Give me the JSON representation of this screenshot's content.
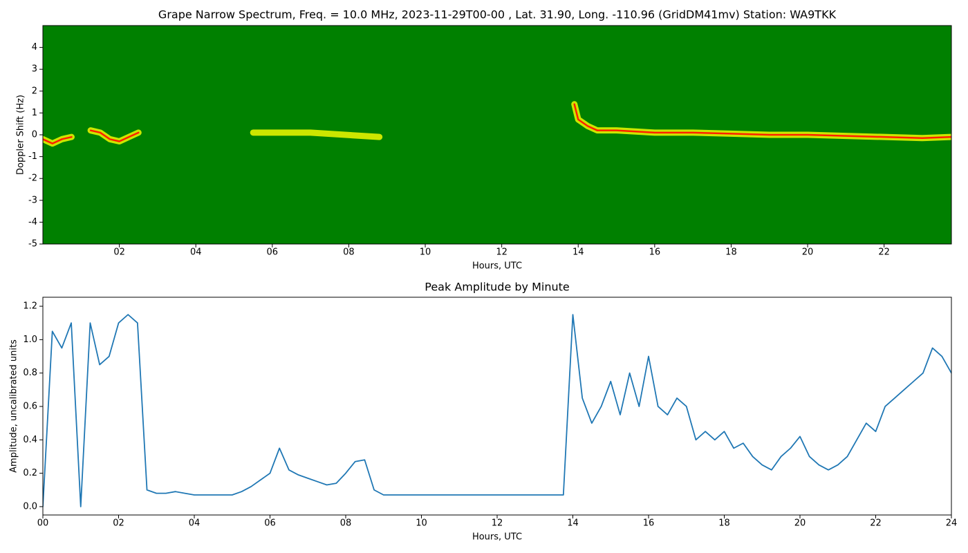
{
  "chart_data": [
    {
      "type": "spectrogram",
      "title": "Grape Narrow Spectrum, Freq. = 10.0 MHz, 2023-11-29T00-00 , Lat.  31.90, Long. -110.96 (GridDM41mv) Station: WA9TKK",
      "x_label": "Hours, UTC",
      "y_label": "Doppler Shift (Hz)",
      "background": "#008000",
      "x": [
        0,
        0.25,
        0.5,
        0.75,
        1.0,
        1.25,
        1.5,
        1.75,
        2.0,
        2.25,
        2.5,
        3.0,
        5.5,
        7.0,
        8.8,
        9.0,
        13.9,
        14.0,
        14.25,
        14.5,
        15,
        16,
        17,
        18,
        19,
        20,
        21,
        22,
        23,
        23.75
      ],
      "series": [
        {
          "color": "#ffff00",
          "values": [
            -0.2,
            -0.4,
            -0.2,
            -0.1,
            null,
            0.2,
            0.1,
            -0.2,
            -0.3,
            -0.1,
            0.1,
            null,
            0.1,
            0.1,
            -0.1,
            null,
            1.4,
            0.7,
            0.4,
            0.2,
            0.2,
            0.1,
            0.1,
            0.05,
            0,
            0,
            -0.05,
            -0.1,
            -0.15,
            -0.1
          ]
        },
        {
          "color": "#ff2000",
          "values": [
            -0.2,
            -0.4,
            -0.2,
            -0.1,
            null,
            0.2,
            0.1,
            -0.2,
            -0.3,
            -0.1,
            0.1,
            null,
            null,
            null,
            null,
            null,
            1.4,
            0.7,
            0.4,
            0.2,
            0.2,
            0.1,
            0.1,
            0.05,
            0,
            0,
            -0.05,
            -0.1,
            -0.15,
            -0.1
          ]
        }
      ],
      "xlim": [
        0,
        23.76
      ],
      "ylim": [
        -5,
        5
      ],
      "xticks": [
        {
          "value": 2,
          "label": "02"
        },
        {
          "value": 4,
          "label": "04"
        },
        {
          "value": 6,
          "label": "06"
        },
        {
          "value": 8,
          "label": "08"
        },
        {
          "value": 10,
          "label": "10"
        },
        {
          "value": 12,
          "label": "12"
        },
        {
          "value": 14,
          "label": "14"
        },
        {
          "value": 16,
          "label": "16"
        },
        {
          "value": 18,
          "label": "18"
        },
        {
          "value": 20,
          "label": "20"
        },
        {
          "value": 22,
          "label": "22"
        }
      ],
      "yticks": [
        -5,
        -4,
        -3,
        -2,
        -1,
        0,
        1,
        2,
        3,
        4
      ]
    },
    {
      "type": "line",
      "title": "Peak Amplitude by Minute",
      "x_label": "Hours, UTC",
      "y_label": "Amplitude, uncalibrated units",
      "x": [
        0,
        0.25,
        0.5,
        0.75,
        1.0,
        1.25,
        1.5,
        1.75,
        2.0,
        2.25,
        2.5,
        2.75,
        3.0,
        3.25,
        3.5,
        3.75,
        4.0,
        4.25,
        4.5,
        4.75,
        5.0,
        5.25,
        5.5,
        5.75,
        6.0,
        6.25,
        6.5,
        6.75,
        7.0,
        7.25,
        7.5,
        7.75,
        8.0,
        8.25,
        8.5,
        8.75,
        9.0,
        9.25,
        9.5,
        9.75,
        10.0,
        10.25,
        10.5,
        10.75,
        11.0,
        11.25,
        11.5,
        11.75,
        12.0,
        12.25,
        12.5,
        12.75,
        13.0,
        13.25,
        13.5,
        13.75,
        14.0,
        14.25,
        14.5,
        14.75,
        15.0,
        15.25,
        15.5,
        15.75,
        16.0,
        16.25,
        16.5,
        16.75,
        17.0,
        17.25,
        17.5,
        17.75,
        18.0,
        18.25,
        18.5,
        18.75,
        19.0,
        19.25,
        19.5,
        19.75,
        20.0,
        20.25,
        20.5,
        20.75,
        21.0,
        21.25,
        21.5,
        21.75,
        22.0,
        22.25,
        22.5,
        22.75,
        23.0,
        23.25,
        23.5,
        23.75,
        24.0
      ],
      "series": [
        {
          "color": "#1f77b4",
          "values": [
            0.0,
            1.05,
            0.95,
            1.1,
            0.0,
            1.1,
            0.85,
            0.9,
            1.1,
            1.15,
            1.1,
            0.1,
            0.08,
            0.08,
            0.09,
            0.08,
            0.07,
            0.07,
            0.07,
            0.07,
            0.07,
            0.09,
            0.12,
            0.16,
            0.2,
            0.35,
            0.22,
            0.19,
            0.17,
            0.15,
            0.13,
            0.14,
            0.2,
            0.27,
            0.28,
            0.1,
            0.07,
            0.07,
            0.07,
            0.07,
            0.07,
            0.07,
            0.07,
            0.07,
            0.07,
            0.07,
            0.07,
            0.07,
            0.07,
            0.07,
            0.07,
            0.07,
            0.07,
            0.07,
            0.07,
            0.07,
            1.15,
            0.65,
            0.5,
            0.6,
            0.75,
            0.55,
            0.8,
            0.6,
            0.9,
            0.6,
            0.55,
            0.65,
            0.6,
            0.4,
            0.45,
            0.4,
            0.45,
            0.35,
            0.38,
            0.3,
            0.25,
            0.22,
            0.3,
            0.35,
            0.42,
            0.3,
            0.25,
            0.22,
            0.25,
            0.3,
            0.4,
            0.5,
            0.45,
            0.6,
            0.65,
            0.7,
            0.75,
            0.8,
            0.95,
            0.9,
            0.8
          ]
        }
      ],
      "xlim": [
        0,
        24
      ],
      "ylim": [
        -0.05,
        1.254
      ],
      "xticks": [
        {
          "value": 0,
          "label": "00"
        },
        {
          "value": 2,
          "label": "02"
        },
        {
          "value": 4,
          "label": "04"
        },
        {
          "value": 6,
          "label": "06"
        },
        {
          "value": 8,
          "label": "08"
        },
        {
          "value": 10,
          "label": "10"
        },
        {
          "value": 12,
          "label": "12"
        },
        {
          "value": 14,
          "label": "14"
        },
        {
          "value": 16,
          "label": "16"
        },
        {
          "value": 18,
          "label": "18"
        },
        {
          "value": 20,
          "label": "20"
        },
        {
          "value": 22,
          "label": "22"
        },
        {
          "value": 24,
          "label": "24"
        }
      ],
      "yticks": [
        {
          "value": 0,
          "label": "0.0"
        },
        0.2,
        0.4,
        0.6,
        0.8,
        {
          "value": 1,
          "label": "1.0"
        },
        1.2
      ]
    }
  ]
}
